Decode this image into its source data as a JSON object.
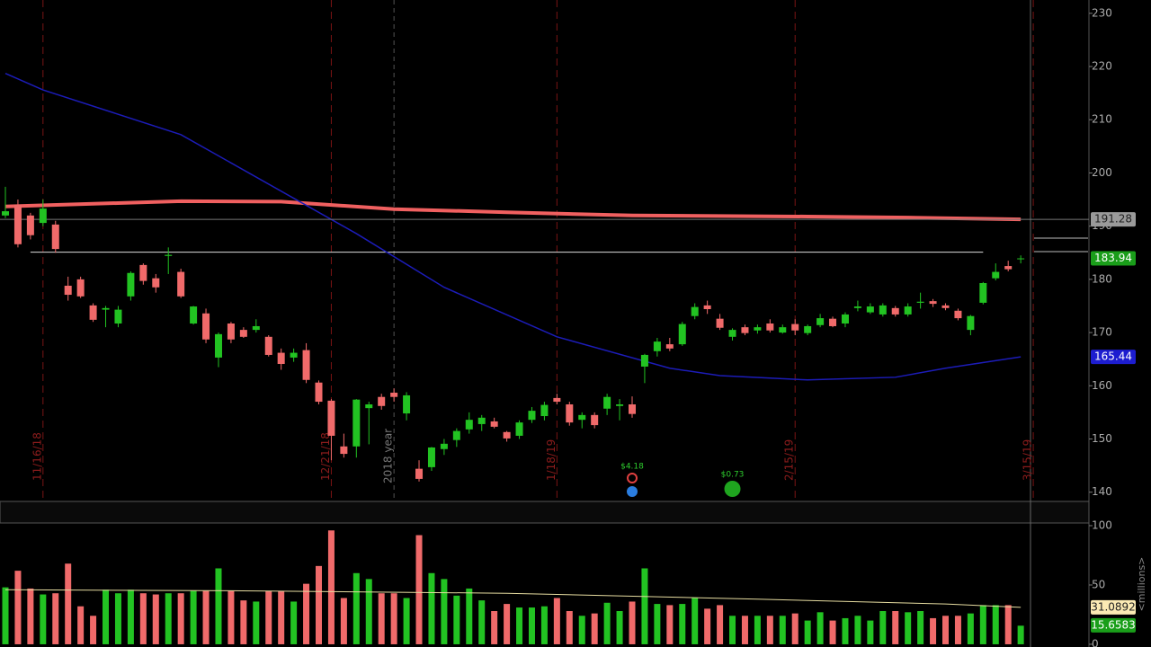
{
  "chart_data": {
    "type": "candlestick",
    "up_color": "#22c322",
    "down_color": "#f06a6a",
    "ylim": [
      138.6,
      232.5
    ],
    "yticks": [
      140,
      150,
      160,
      170,
      180,
      190,
      200,
      210,
      220,
      230
    ],
    "candles": [
      [
        192.0,
        197.4,
        191.5,
        192.8
      ],
      [
        194.0,
        195.0,
        186.0,
        186.6
      ],
      [
        192.0,
        192.5,
        187.5,
        188.3
      ],
      [
        190.6,
        195.0,
        190.0,
        193.3
      ],
      [
        190.3,
        191.0,
        185.0,
        185.7
      ],
      [
        178.8,
        180.5,
        176.0,
        177.1
      ],
      [
        180.0,
        180.5,
        176.5,
        176.8
      ],
      [
        175.1,
        175.5,
        172.0,
        172.4
      ],
      [
        174.3,
        175.0,
        171.0,
        174.6
      ],
      [
        171.7,
        175.0,
        171.0,
        174.3
      ],
      [
        176.8,
        181.5,
        176.0,
        181.2
      ],
      [
        182.7,
        183.0,
        179.0,
        179.7
      ],
      [
        180.2,
        181.0,
        177.5,
        178.5
      ],
      [
        184.4,
        186.0,
        181.0,
        184.6
      ],
      [
        181.4,
        182.0,
        176.5,
        176.8
      ],
      [
        171.7,
        175.0,
        171.5,
        174.9
      ],
      [
        173.6,
        174.5,
        168.0,
        168.7
      ],
      [
        165.3,
        170.0,
        163.5,
        169.7
      ],
      [
        171.7,
        172.0,
        168.0,
        168.7
      ],
      [
        170.5,
        171.0,
        169.0,
        169.2
      ],
      [
        170.5,
        172.5,
        170.0,
        171.2
      ],
      [
        169.2,
        169.5,
        165.5,
        165.8
      ],
      [
        166.2,
        167.0,
        163.0,
        164.1
      ],
      [
        165.3,
        167.0,
        164.5,
        166.2
      ],
      [
        166.7,
        168.0,
        160.5,
        161.1
      ],
      [
        160.6,
        161.0,
        156.5,
        157.0
      ],
      [
        157.2,
        157.5,
        146.0,
        150.6
      ],
      [
        148.6,
        151.0,
        146.5,
        147.2
      ],
      [
        148.6,
        157.5,
        146.5,
        157.4
      ],
      [
        155.8,
        157.0,
        149.0,
        156.5
      ],
      [
        157.9,
        158.5,
        155.5,
        156.2
      ],
      [
        158.7,
        159.5,
        157.0,
        157.9
      ],
      [
        154.8,
        158.8,
        153.5,
        158.2
      ],
      [
        144.4,
        146.0,
        142.0,
        142.5
      ],
      [
        144.7,
        148.5,
        144.0,
        148.4
      ],
      [
        148.1,
        150.0,
        147.0,
        149.1
      ],
      [
        149.8,
        152.0,
        148.5,
        151.5
      ],
      [
        151.8,
        155.0,
        151.0,
        153.6
      ],
      [
        152.8,
        154.5,
        151.5,
        154.0
      ],
      [
        153.3,
        154.0,
        152.0,
        152.3
      ],
      [
        151.3,
        151.5,
        149.5,
        150.1
      ],
      [
        150.6,
        153.5,
        150.0,
        153.1
      ],
      [
        153.6,
        156.0,
        153.0,
        155.3
      ],
      [
        154.3,
        157.0,
        153.5,
        156.4
      ],
      [
        157.7,
        158.5,
        156.5,
        157.0
      ],
      [
        156.5,
        157.0,
        152.5,
        153.1
      ],
      [
        153.6,
        155.0,
        152.0,
        154.5
      ],
      [
        154.5,
        155.0,
        152.0,
        152.6
      ],
      [
        155.7,
        158.5,
        154.5,
        157.9
      ],
      [
        156.2,
        157.5,
        153.5,
        156.5
      ],
      [
        156.5,
        158.0,
        154.0,
        154.7
      ],
      [
        163.6,
        166.0,
        160.5,
        165.8
      ],
      [
        166.5,
        169.0,
        165.5,
        168.3
      ],
      [
        167.8,
        169.0,
        166.5,
        167.0
      ],
      [
        167.8,
        172.0,
        167.5,
        171.6
      ],
      [
        173.1,
        175.5,
        172.5,
        174.8
      ],
      [
        175.1,
        176.0,
        173.5,
        174.4
      ],
      [
        172.6,
        173.5,
        170.5,
        170.9
      ],
      [
        169.2,
        170.8,
        168.5,
        170.5
      ],
      [
        171.0,
        171.5,
        169.5,
        169.9
      ],
      [
        170.4,
        171.5,
        169.8,
        171.0
      ],
      [
        171.7,
        172.5,
        170.0,
        170.4
      ],
      [
        170.0,
        171.5,
        169.8,
        171.0
      ],
      [
        171.6,
        172.5,
        169.5,
        170.4
      ],
      [
        169.9,
        171.5,
        169.5,
        171.2
      ],
      [
        171.4,
        173.5,
        171.0,
        172.7
      ],
      [
        172.6,
        173.0,
        171.0,
        171.2
      ],
      [
        171.7,
        173.8,
        171.0,
        173.4
      ],
      [
        174.6,
        176.0,
        174.0,
        174.9
      ],
      [
        173.8,
        175.5,
        173.5,
        174.9
      ],
      [
        173.4,
        175.5,
        173.0,
        175.1
      ],
      [
        174.6,
        175.0,
        173.0,
        173.4
      ],
      [
        173.4,
        175.5,
        173.0,
        174.9
      ],
      [
        175.6,
        177.5,
        174.5,
        175.8
      ],
      [
        175.9,
        176.3,
        174.8,
        175.4
      ],
      [
        175.1,
        175.5,
        174.2,
        174.6
      ],
      [
        174.1,
        174.5,
        172.3,
        172.7
      ],
      [
        170.5,
        173.3,
        169.5,
        173.1
      ],
      [
        175.6,
        179.5,
        175.3,
        179.3
      ],
      [
        180.2,
        183.0,
        179.8,
        181.4
      ],
      [
        182.5,
        183.5,
        181.5,
        181.9
      ],
      [
        183.8,
        184.5,
        183.0,
        183.94
      ]
    ],
    "moving_averages": [
      {
        "color": "#f06060",
        "x": [
          0,
          14,
          22,
          31,
          40,
          50,
          64,
          72,
          81
        ],
        "values": [
          193.7,
          194.7,
          194.6,
          193.2,
          192.6,
          192.0,
          191.8,
          191.6,
          191.28
        ]
      },
      {
        "color": "#1c1cb8",
        "x": [
          0,
          3,
          14,
          28,
          35,
          44,
          53,
          57,
          64,
          71,
          75,
          81
        ],
        "values": [
          218.7,
          215.6,
          207.2,
          188.6,
          178.5,
          169.2,
          163.3,
          161.9,
          161.1,
          161.6,
          163.3,
          165.44
        ]
      }
    ],
    "horizontal_line": {
      "value": 185.1,
      "from": 2,
      "to": 78
    },
    "date_lines": [
      {
        "x": 3,
        "label": "11/16/18"
      },
      {
        "x": 26,
        "label": "12/21/18"
      },
      {
        "x": 44,
        "label": "1/18/19"
      },
      {
        "x": 63,
        "label": "2/15/19"
      },
      {
        "x": 82,
        "label": "3/15/19"
      }
    ],
    "year_line": {
      "x": 31,
      "label": "2018 year"
    },
    "events": [
      {
        "x": 50,
        "label": "$4.18"
      },
      {
        "x": 58,
        "label": "$0.73"
      }
    ],
    "volume_ylim": [
      -2.3,
      101.5
    ],
    "volume_yticks": [
      0,
      50,
      100
    ],
    "volume_unit": "<millions>",
    "volume": [
      48,
      62,
      47,
      42,
      43,
      68,
      32,
      24,
      46,
      43,
      46,
      43,
      42,
      43,
      43,
      45,
      45,
      64,
      45,
      37,
      36,
      45,
      45,
      36,
      51,
      66,
      96,
      39,
      60,
      55,
      43,
      43,
      39,
      92,
      60,
      55,
      41,
      47,
      37,
      28,
      34,
      31,
      31,
      32,
      39,
      28,
      24,
      26,
      35,
      28,
      36,
      64,
      34,
      33,
      34,
      39,
      30,
      33,
      24,
      24,
      24,
      24,
      24,
      26,
      20,
      27,
      20,
      22,
      24,
      20,
      28,
      28,
      27,
      28,
      22,
      24,
      24,
      26,
      33,
      33,
      33,
      15.6583
    ],
    "volume_average": {
      "color": "#e6dca0",
      "x": [
        0,
        20,
        40,
        60,
        75,
        81
      ],
      "values": [
        46,
        45,
        43,
        38,
        34,
        31.0892
      ]
    }
  }
}
